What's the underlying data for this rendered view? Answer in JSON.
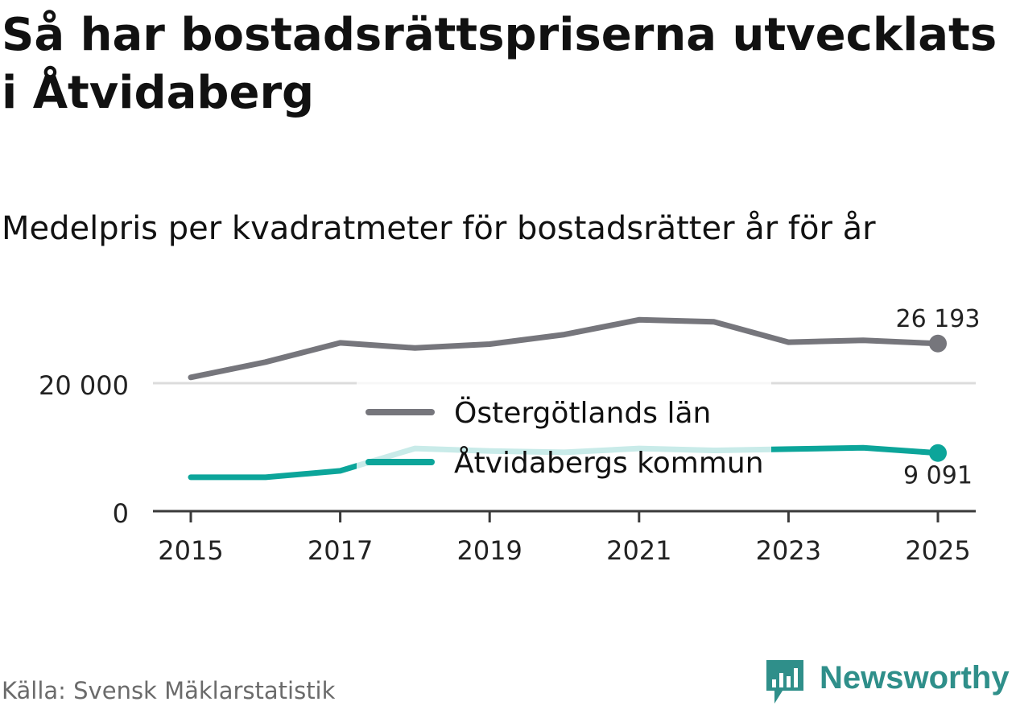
{
  "title": "Så har bostadsrättspriserna utvecklats i Åtvidaberg",
  "subtitle": "Medelpris per kvadratmeter för bostadsrätter år för år",
  "source": "Källa: Svensk Mäklarstatistik",
  "brand": "Newsworthy",
  "colors": {
    "county": "#76767c",
    "municipality": "#0ca59a",
    "municipality_faded": "#c9ece8",
    "axis": "#3a3a3a",
    "grid": "#dcdcdc",
    "brand": "#2f8f8a"
  },
  "chart_data": {
    "type": "line",
    "title": "Medelpris per kvadratmeter för bostadsrätter år för år",
    "xlabel": "",
    "ylabel": "",
    "x": [
      2015,
      2016,
      2017,
      2018,
      2019,
      2020,
      2021,
      2022,
      2023,
      2024,
      2025
    ],
    "xticks": [
      2015,
      2017,
      2019,
      2021,
      2023,
      2025
    ],
    "xtick_labels": [
      "2015",
      "2017",
      "2019",
      "2021",
      "2023",
      "2025"
    ],
    "yticks": [
      0,
      20000
    ],
    "ytick_labels": [
      "0",
      "20 000"
    ],
    "ylim": [
      0,
      32000
    ],
    "grid": true,
    "series": [
      {
        "name": "Östergötlands län",
        "values": [
          20900,
          23300,
          26300,
          25500,
          26100,
          27600,
          29900,
          29600,
          26400,
          26700,
          26193
        ],
        "end_label": "26 193"
      },
      {
        "name": "Åtvidabergs kommun",
        "values": [
          5300,
          5300,
          6300,
          9800,
          9400,
          9200,
          9800,
          9500,
          9700,
          9900,
          9091
        ],
        "end_label": "9 091"
      }
    ]
  }
}
